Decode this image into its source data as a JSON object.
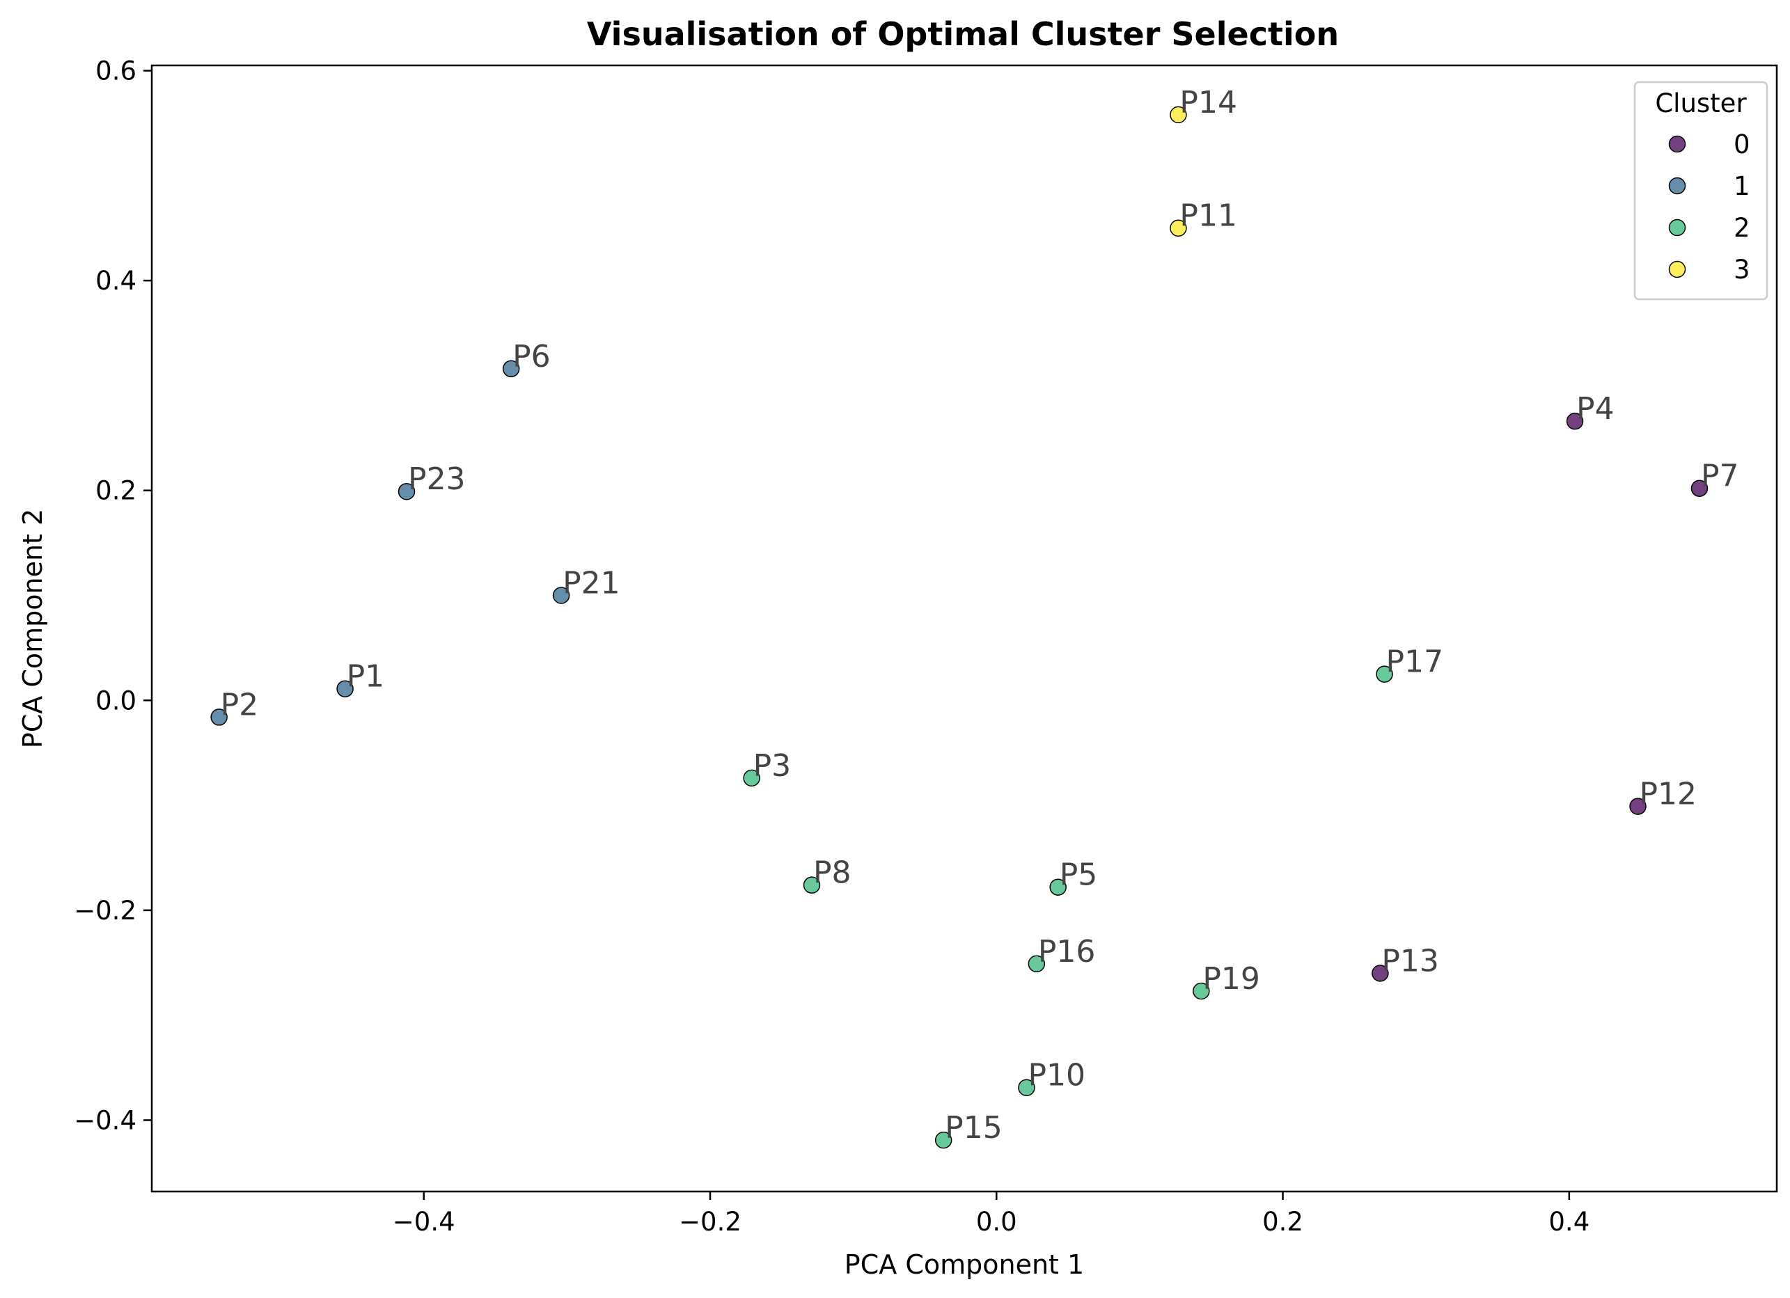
{
  "chart_data": {
    "type": "scatter",
    "title": "Visualisation of Optimal Cluster Selection",
    "xlabel": "PCA Component 1",
    "ylabel": "PCA Component 2",
    "xlim": [
      -0.59,
      0.545
    ],
    "ylim": [
      -0.468,
      0.605
    ],
    "x_ticks": [
      {
        "value": -0.4,
        "label": "−0.4"
      },
      {
        "value": -0.2,
        "label": "−0.2"
      },
      {
        "value": 0.0,
        "label": "0.0"
      },
      {
        "value": 0.2,
        "label": "0.2"
      },
      {
        "value": 0.4,
        "label": "0.4"
      }
    ],
    "y_ticks": [
      {
        "value": -0.4,
        "label": "−0.4"
      },
      {
        "value": -0.2,
        "label": "−0.2"
      },
      {
        "value": 0.0,
        "label": "0.0"
      },
      {
        "value": 0.2,
        "label": "0.2"
      },
      {
        "value": 0.4,
        "label": "0.4"
      },
      {
        "value": 0.6,
        "label": "0.6"
      }
    ],
    "grid": false,
    "legend": {
      "title": "Cluster",
      "placement": "top-right",
      "entries": [
        {
          "label": "0",
          "color": "#440154"
        },
        {
          "label": "1",
          "color": "#31688e"
        },
        {
          "label": "2",
          "color": "#35b779"
        },
        {
          "label": "3",
          "color": "#fde725"
        }
      ]
    },
    "points": [
      {
        "label": "P1",
        "x": -0.455,
        "y": 0.011,
        "cluster": 1
      },
      {
        "label": "P2",
        "x": -0.543,
        "y": -0.016,
        "cluster": 1
      },
      {
        "label": "P3",
        "x": -0.171,
        "y": -0.074,
        "cluster": 2
      },
      {
        "label": "P4",
        "x": 0.404,
        "y": 0.266,
        "cluster": 0
      },
      {
        "label": "P5",
        "x": 0.043,
        "y": -0.178,
        "cluster": 2
      },
      {
        "label": "P6",
        "x": -0.339,
        "y": 0.316,
        "cluster": 1
      },
      {
        "label": "P7",
        "x": 0.491,
        "y": 0.202,
        "cluster": 0
      },
      {
        "label": "P8",
        "x": -0.129,
        "y": -0.176,
        "cluster": 2
      },
      {
        "label": "P10",
        "x": 0.021,
        "y": -0.369,
        "cluster": 2
      },
      {
        "label": "P11",
        "x": 0.127,
        "y": 0.45,
        "cluster": 3
      },
      {
        "label": "P12",
        "x": 0.448,
        "y": -0.101,
        "cluster": 0
      },
      {
        "label": "P13",
        "x": 0.268,
        "y": -0.26,
        "cluster": 0
      },
      {
        "label": "P14",
        "x": 0.127,
        "y": 0.558,
        "cluster": 3
      },
      {
        "label": "P15",
        "x": -0.037,
        "y": -0.419,
        "cluster": 2
      },
      {
        "label": "P16",
        "x": 0.028,
        "y": -0.251,
        "cluster": 2
      },
      {
        "label": "P17",
        "x": 0.271,
        "y": 0.025,
        "cluster": 2
      },
      {
        "label": "P19",
        "x": 0.143,
        "y": -0.277,
        "cluster": 2
      },
      {
        "label": "P21",
        "x": -0.304,
        "y": 0.1,
        "cluster": 1
      },
      {
        "label": "P23",
        "x": -0.412,
        "y": 0.199,
        "cluster": 1
      }
    ]
  }
}
